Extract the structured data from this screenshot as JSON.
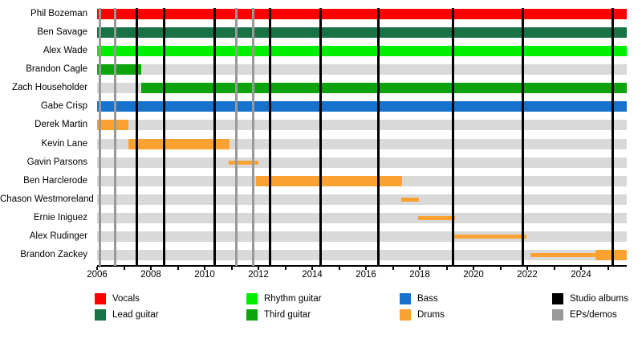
{
  "chart_data": {
    "type": "timeline",
    "title": "",
    "xlabel": "",
    "x_axis": {
      "start": 2006,
      "end": 2025.7,
      "labeled_ticks": [
        2006,
        2008,
        2010,
        2012,
        2014,
        2016,
        2018,
        2020,
        2022,
        2024
      ],
      "minor_tick_step": 1
    },
    "colors": {
      "vocals": "#fe0000",
      "lead_guitar": "#177245",
      "rhythm_guitar": "#00ef00",
      "third_guitar": "#0ca30c",
      "bass": "#1672cd",
      "drums": "#fba232",
      "studio_albums": "#000000",
      "eps_demos": "#999999",
      "row_track": "#d9d9d9"
    },
    "members": [
      {
        "name": "Phil Bozeman",
        "role": "vocals",
        "segments": [
          {
            "from": 2006.0,
            "to": 2025.7,
            "weight": "full"
          }
        ]
      },
      {
        "name": "Ben Savage",
        "role": "lead_guitar",
        "segments": [
          {
            "from": 2006.0,
            "to": 2025.7,
            "weight": "full"
          }
        ]
      },
      {
        "name": "Alex Wade",
        "role": "rhythm_guitar",
        "segments": [
          {
            "from": 2006.0,
            "to": 2025.7,
            "weight": "full"
          }
        ]
      },
      {
        "name": "Brandon Cagle",
        "role": "third_guitar",
        "segments": [
          {
            "from": 2006.0,
            "to": 2007.65,
            "weight": "full"
          }
        ]
      },
      {
        "name": "Zach Householder",
        "role": "third_guitar",
        "segments": [
          {
            "from": 2007.65,
            "to": 2025.7,
            "weight": "full"
          }
        ]
      },
      {
        "name": "Gabe Crisp",
        "role": "bass",
        "segments": [
          {
            "from": 2006.0,
            "to": 2025.7,
            "weight": "full"
          }
        ]
      },
      {
        "name": "Derek Martin",
        "role": "drums",
        "segments": [
          {
            "from": 2006.0,
            "to": 2007.17,
            "weight": "full"
          }
        ]
      },
      {
        "name": "Kevin Lane",
        "role": "drums",
        "segments": [
          {
            "from": 2007.17,
            "to": 2010.92,
            "weight": "full"
          }
        ]
      },
      {
        "name": "Gavin Parsons",
        "role": "drums",
        "segments": [
          {
            "from": 2010.9,
            "to": 2012.0,
            "weight": "part"
          }
        ]
      },
      {
        "name": "Ben Harclerode",
        "role": "drums",
        "segments": [
          {
            "from": 2011.9,
            "to": 2017.33,
            "weight": "full"
          }
        ]
      },
      {
        "name": "Chason Westmoreland",
        "role": "drums",
        "segments": [
          {
            "from": 2017.31,
            "to": 2017.96,
            "weight": "part"
          }
        ]
      },
      {
        "name": "Ernie Iniguez",
        "role": "drums",
        "segments": [
          {
            "from": 2017.93,
            "to": 2019.32,
            "weight": "part"
          }
        ]
      },
      {
        "name": "Alex Rudinger",
        "role": "drums",
        "segments": [
          {
            "from": 2019.25,
            "to": 2021.97,
            "weight": "part"
          }
        ]
      },
      {
        "name": "Brandon Zackey",
        "role": "drums",
        "segments": [
          {
            "from": 2022.11,
            "to": 2024.55,
            "weight": "part"
          },
          {
            "from": 2024.55,
            "to": 2025.7,
            "weight": "full"
          }
        ]
      }
    ],
    "studio_album_lines": [
      2007.48,
      2008.49,
      2010.37,
      2012.43,
      2014.32,
      2016.47,
      2019.24,
      2021.82,
      2025.19
    ],
    "ep_demo_lines": [
      2006.1,
      2006.68,
      2011.19,
      2011.81
    ],
    "legend": {
      "columns": [
        [
          {
            "label": "Vocals",
            "color_key": "vocals"
          },
          {
            "label": "Lead guitar",
            "color_key": "lead_guitar"
          }
        ],
        [
          {
            "label": "Rhythm guitar",
            "color_key": "rhythm_guitar"
          },
          {
            "label": "Third guitar",
            "color_key": "third_guitar"
          }
        ],
        [
          {
            "label": "Bass",
            "color_key": "bass"
          },
          {
            "label": "Drums",
            "color_key": "drums"
          }
        ],
        [
          {
            "label": "Studio albums",
            "color_key": "studio_albums"
          },
          {
            "label": "EPs/demos",
            "color_key": "eps_demos"
          }
        ]
      ]
    }
  }
}
